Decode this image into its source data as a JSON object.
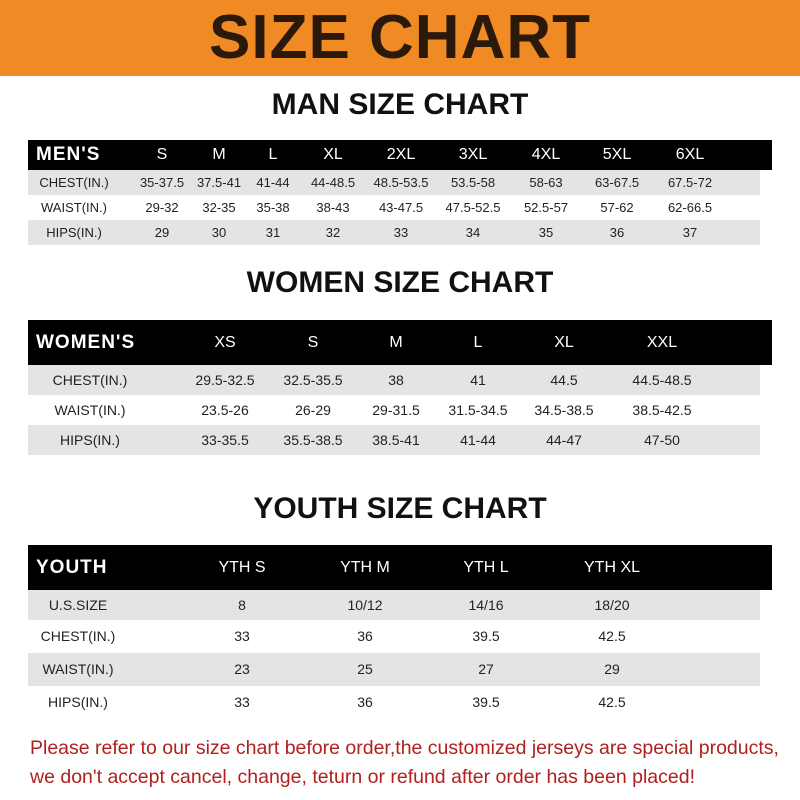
{
  "banner": {
    "title": "SIZE CHART",
    "color": "#f08a24"
  },
  "men": {
    "title": "MAN SIZE CHART",
    "header": [
      "MEN'S",
      "S",
      "M",
      "L",
      "XL",
      "2XL",
      "3XL",
      "4XL",
      "5XL",
      "6XL"
    ],
    "rows": [
      [
        "CHEST(IN.)",
        "35-37.5",
        "37.5-41",
        "41-44",
        "44-48.5",
        "48.5-53.5",
        "53.5-58",
        "58-63",
        "63-67.5",
        "67.5-72"
      ],
      [
        "WAIST(IN.)",
        "29-32",
        "32-35",
        "35-38",
        "38-43",
        "43-47.5",
        "47.5-52.5",
        "52.5-57",
        "57-62",
        "62-66.5"
      ],
      [
        "HIPS(IN.)",
        "29",
        "30",
        "31",
        "32",
        "33",
        "34",
        "35",
        "36",
        "37"
      ]
    ]
  },
  "women": {
    "title": "WOMEN SIZE CHART",
    "header": [
      "WOMEN'S",
      "XS",
      "S",
      "M",
      "L",
      "XL",
      "XXL"
    ],
    "rows": [
      [
        "CHEST(IN.)",
        "29.5-32.5",
        "32.5-35.5",
        "38",
        "41",
        "44.5",
        "44.5-48.5"
      ],
      [
        "WAIST(IN.)",
        "23.5-26",
        "26-29",
        "29-31.5",
        "31.5-34.5",
        "34.5-38.5",
        "38.5-42.5"
      ],
      [
        "HIPS(IN.)",
        "33-35.5",
        "35.5-38.5",
        "38.5-41",
        "41-44",
        "44-47",
        "47-50"
      ]
    ]
  },
  "youth": {
    "title": "YOUTH SIZE CHART",
    "header": [
      "YOUTH",
      "YTH S",
      "YTH M",
      "YTH L",
      "YTH XL"
    ],
    "rows": [
      [
        "U.S.SIZE",
        "8",
        "10/12",
        "14/16",
        "18/20"
      ],
      [
        "CHEST(IN.)",
        "33",
        "36",
        "39.5",
        "42.5"
      ],
      [
        "WAIST(IN.)",
        "23",
        "25",
        "27",
        "29"
      ],
      [
        "HIPS(IN.)",
        "33",
        "36",
        "39.5",
        "42.5"
      ]
    ]
  },
  "note": {
    "line1": "Please refer to our size chart before order,the customized jerseys are special products,",
    "line2": "we don't accept cancel, change, teturn or refund after order has been placed!",
    "color": "#b0201e"
  }
}
